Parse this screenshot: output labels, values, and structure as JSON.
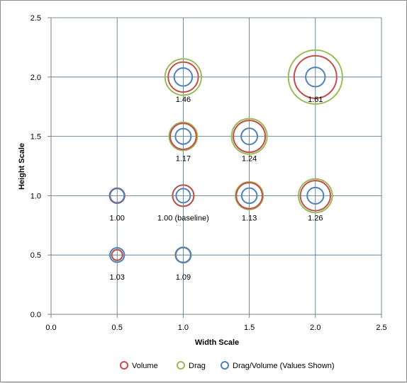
{
  "chart_data": {
    "type": "scatter",
    "title": "",
    "xlabel": "Width Scale",
    "ylabel": "Height Scale",
    "xlim": [
      0,
      2.5
    ],
    "ylim": [
      0,
      2.5
    ],
    "xticks": [
      "0.0",
      "0.5",
      "1.0",
      "1.5",
      "2.0",
      "2.5"
    ],
    "yticks": [
      "0.0",
      "0.5",
      "1.0",
      "1.5",
      "2.0",
      "2.5"
    ],
    "grid": true,
    "legend_position": "bottom",
    "series": [
      {
        "name": "Volume",
        "color": "#c0504d"
      },
      {
        "name": "Drag",
        "color": "#9bbb59"
      },
      {
        "name": "Drag/Volume (Values Shown)",
        "color": "#4f81bd"
      }
    ],
    "points": [
      {
        "x": 0.5,
        "y": 0.5,
        "volume": 0.25,
        "drag": 0.26,
        "drag_volume": 1.03,
        "label": "1.03"
      },
      {
        "x": 0.5,
        "y": 1.0,
        "volume": 0.5,
        "drag": 0.5,
        "drag_volume": 1.0,
        "label": "1.00"
      },
      {
        "x": 1.0,
        "y": 0.5,
        "volume": 0.5,
        "drag": 0.55,
        "drag_volume": 1.09,
        "label": "1.09"
      },
      {
        "x": 1.0,
        "y": 1.0,
        "volume": 1.0,
        "drag": 1.0,
        "drag_volume": 1.0,
        "label": "1.00 (baseline)"
      },
      {
        "x": 1.0,
        "y": 1.5,
        "volume": 1.5,
        "drag": 1.76,
        "drag_volume": 1.17,
        "label": "1.17"
      },
      {
        "x": 1.0,
        "y": 2.0,
        "volume": 2.0,
        "drag": 2.92,
        "drag_volume": 1.46,
        "label": "1.46"
      },
      {
        "x": 1.5,
        "y": 1.0,
        "volume": 1.5,
        "drag": 1.7,
        "drag_volume": 1.13,
        "label": "1.13"
      },
      {
        "x": 1.5,
        "y": 1.5,
        "volume": 2.25,
        "drag": 2.79,
        "drag_volume": 1.24,
        "label": "1.24"
      },
      {
        "x": 2.0,
        "y": 1.0,
        "volume": 2.0,
        "drag": 2.52,
        "drag_volume": 1.26,
        "label": "1.26"
      },
      {
        "x": 2.0,
        "y": 2.0,
        "volume": 4.0,
        "drag": 6.44,
        "drag_volume": 1.61,
        "label": "1.61"
      }
    ]
  }
}
